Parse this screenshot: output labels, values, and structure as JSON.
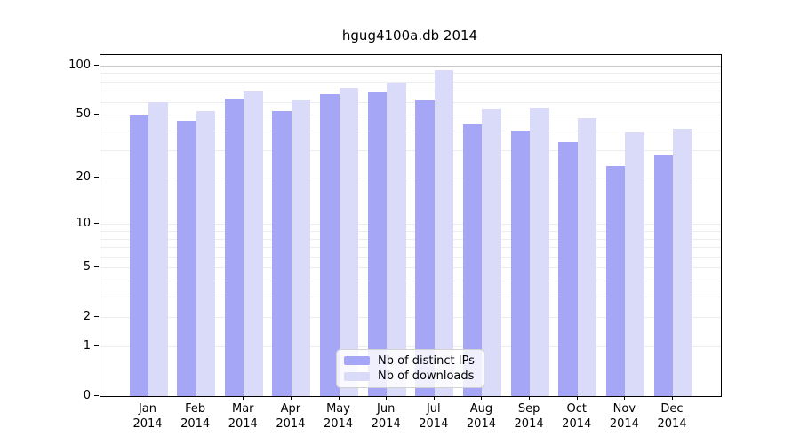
{
  "title": "hgug4100a.db 2014",
  "chart_data": {
    "type": "bar",
    "title": "hgug4100a.db 2014",
    "yscale": "log1p",
    "ylim": [
      0,
      117
    ],
    "yticks": [
      100,
      50,
      20,
      10,
      5,
      2,
      1,
      0
    ],
    "grid": {
      "orientation": "horizontal",
      "minor_values": [
        1,
        2,
        3,
        4,
        5,
        6,
        7,
        8,
        9,
        10,
        20,
        30,
        40,
        50,
        60,
        70,
        80,
        90
      ],
      "major_values": [
        100
      ],
      "minor_color": "#ededed",
      "major_color": "#c9c9c9"
    },
    "categories": [
      "Jan",
      "Feb",
      "Mar",
      "Apr",
      "May",
      "Jun",
      "Jul",
      "Aug",
      "Sep",
      "Oct",
      "Nov",
      "Dec"
    ],
    "x_year": "2014",
    "series": [
      {
        "name": "Nb of distinct IPs",
        "color": "#a6a6f7",
        "values": [
          50,
          46,
          63,
          53,
          67,
          69,
          62,
          44,
          40,
          34,
          24,
          28
        ]
      },
      {
        "name": "Nb of downloads",
        "color": "#dadaf9",
        "values": [
          60,
          53,
          70,
          62,
          74,
          79,
          95,
          54,
          55,
          48,
          39,
          41
        ]
      }
    ],
    "legend_position": "lower-center"
  }
}
